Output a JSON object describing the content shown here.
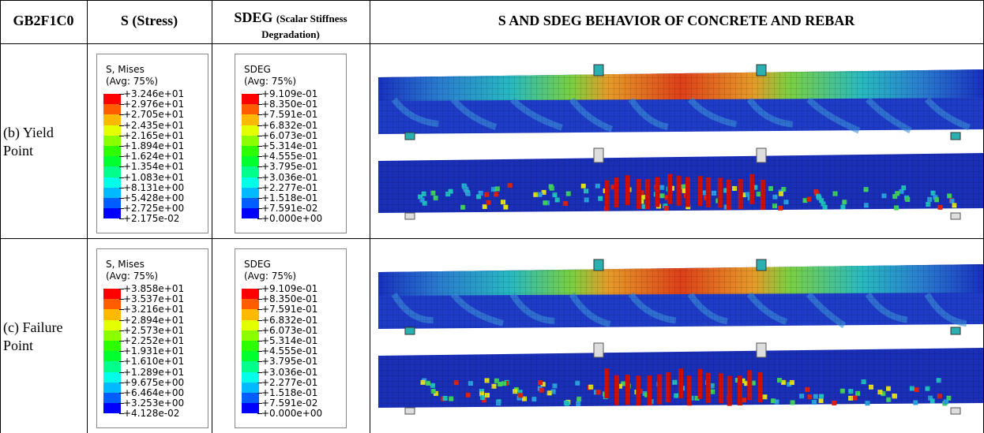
{
  "table": {
    "header": [
      "GB2F1C0",
      "S (Stress)",
      {
        "main": "SDEG",
        "sub": "(Scalar Stiffness Degradation)"
      },
      "S AND SDEG BEHAVIOR OF CONCRETE AND REBAR"
    ],
    "rows": [
      {
        "label": "(b) Yield Point",
        "stress_legend": {
          "title": "S, Mises",
          "avg": "(Avg: 75%)",
          "values": [
            "+3.246e+01",
            "+2.976e+01",
            "+2.705e+01",
            "+2.435e+01",
            "+2.165e+01",
            "+1.894e+01",
            "+1.624e+01",
            "+1.354e+01",
            "+1.083e+01",
            "+8.131e+00",
            "+5.428e+00",
            "+2.725e+00",
            "+2.175e-02"
          ]
        },
        "sdeg_legend": {
          "title": "SDEG",
          "avg": "(Avg: 75%)",
          "values": [
            "+9.109e-01",
            "+8.350e-01",
            "+7.591e-01",
            "+6.832e-01",
            "+6.073e-01",
            "+5.314e-01",
            "+4.555e-01",
            "+3.795e-01",
            "+3.036e-01",
            "+2.277e-01",
            "+1.518e-01",
            "+7.591e-02",
            "+0.000e+00"
          ]
        }
      },
      {
        "label": "(c) Failure Point",
        "stress_legend": {
          "title": "S, Mises",
          "avg": "(Avg: 75%)",
          "values": [
            "+3.858e+01",
            "+3.537e+01",
            "+3.216e+01",
            "+2.894e+01",
            "+2.573e+01",
            "+2.252e+01",
            "+1.931e+01",
            "+1.610e+01",
            "+1.289e+01",
            "+9.675e+00",
            "+6.464e+00",
            "+3.253e+00",
            "+4.128e-02"
          ]
        },
        "sdeg_legend": {
          "title": "SDEG",
          "avg": "(Avg: 75%)",
          "values": [
            "+9.109e-01",
            "+8.350e-01",
            "+7.591e-01",
            "+6.832e-01",
            "+6.073e-01",
            "+5.314e-01",
            "+4.555e-01",
            "+3.795e-01",
            "+3.036e-01",
            "+2.277e-01",
            "+1.518e-01",
            "+7.591e-02",
            "+0.000e+00"
          ]
        }
      }
    ]
  }
}
